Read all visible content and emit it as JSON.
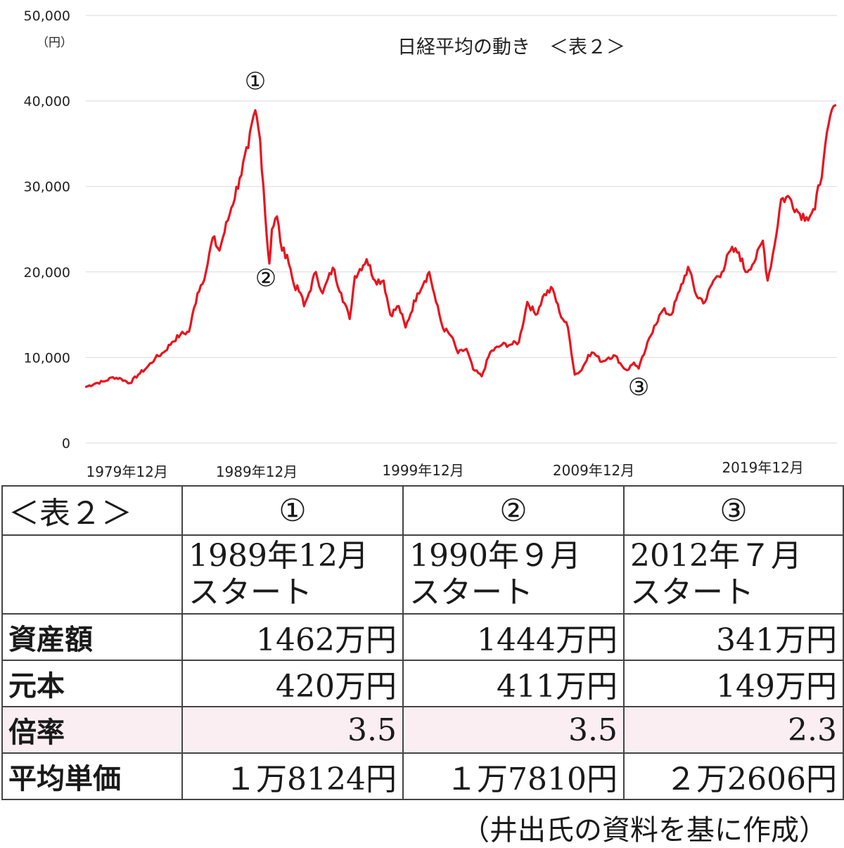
{
  "chart_data": {
    "type": "line",
    "title": "日経平均の動き　＜表２＞",
    "ylabel": "（円）",
    "ylim": [
      0,
      50000
    ],
    "yticks": [
      "0",
      "10,000",
      "20,000",
      "30,000",
      "40,000",
      "50,000"
    ],
    "yticks_values": [
      0,
      10000,
      20000,
      30000,
      40000,
      50000
    ],
    "xlim": [
      1979.9,
      2024.3
    ],
    "xticks": [
      {
        "label": "1979年12月",
        "x": 1979.92
      },
      {
        "label": "1989年12月",
        "x": 1989.92
      },
      {
        "label": "1999年12月",
        "x": 1999.92
      },
      {
        "label": "2009年12月",
        "x": 2009.92
      },
      {
        "label": "2019年12月",
        "x": 2019.92
      }
    ],
    "grid": true,
    "color": "#e8141e",
    "markers": [
      {
        "label": "①",
        "x": 1989.92,
        "y": 38915
      },
      {
        "label": "②",
        "x": 1990.75,
        "y": 20984
      },
      {
        "label": "③",
        "x": 2012.58,
        "y": 8700
      }
    ],
    "series": [
      {
        "x": [
          1979.92,
          1980.5,
          1981.0,
          1981.5,
          1982.0,
          1982.5,
          1983.0,
          1983.5,
          1984.0,
          1984.5,
          1985.0,
          1985.5,
          1986.0,
          1986.5,
          1987.0,
          1987.4,
          1987.8,
          1988.0,
          1988.5,
          1989.0,
          1989.5,
          1989.92,
          1990.2,
          1990.4,
          1990.6,
          1990.75,
          1990.9,
          1991.2,
          1991.5,
          1991.8,
          1992.2,
          1992.6,
          1992.8,
          1993.0,
          1993.5,
          1993.9,
          1994.5,
          1995.0,
          1995.5,
          1995.8,
          1996.5,
          1997.0,
          1997.5,
          1997.9,
          1998.4,
          1998.8,
          1999.5,
          1999.92,
          2000.2,
          2000.6,
          2001.0,
          2001.5,
          2001.9,
          2002.4,
          2002.8,
          2003.3,
          2003.8,
          2004.5,
          2005.0,
          2005.5,
          2006.0,
          2006.5,
          2007.0,
          2007.5,
          2007.9,
          2008.4,
          2008.8,
          2009.2,
          2009.6,
          2009.92,
          2010.4,
          2010.8,
          2011.2,
          2011.6,
          2011.9,
          2012.3,
          2012.58,
          2013.0,
          2013.5,
          2014.0,
          2014.5,
          2015.0,
          2015.5,
          2016.0,
          2016.5,
          2017.0,
          2017.5,
          2018.0,
          2018.5,
          2018.9,
          2019.5,
          2019.92,
          2020.2,
          2020.6,
          2021.0,
          2021.5,
          2022.0,
          2022.5,
          2023.0,
          2023.5,
          2024.0,
          2024.2
        ],
        "values": [
          6570,
          7000,
          7200,
          7700,
          7500,
          7000,
          8000,
          8800,
          9900,
          10600,
          11800,
          12700,
          13000,
          17500,
          20000,
          24000,
          22500,
          24000,
          27500,
          31000,
          34500,
          38915,
          35500,
          30000,
          24000,
          20984,
          25000,
          26500,
          22500,
          22000,
          18500,
          17500,
          16000,
          17000,
          20000,
          17500,
          20500,
          17500,
          14500,
          19500,
          21500,
          19000,
          19000,
          15000,
          16000,
          13500,
          17500,
          18934,
          20000,
          16500,
          13500,
          12500,
          10500,
          11000,
          8600,
          7800,
          10600,
          11500,
          11500,
          11800,
          16500,
          15000,
          17400,
          18000,
          15300,
          13500,
          8000,
          8500,
          10300,
          10546,
          9500,
          10000,
          10200,
          9000,
          8500,
          9400,
          8700,
          11000,
          13700,
          15500,
          15000,
          17800,
          20600,
          17200,
          16500,
          19000,
          20000,
          22500,
          22300,
          20000,
          21500,
          23656,
          19000,
          23000,
          28500,
          28700,
          27000,
          26400,
          27300,
          33000,
          39000,
          39500
        ]
      }
    ]
  },
  "table": {
    "corner": "＜表２＞",
    "markers": [
      "①",
      "②",
      "③"
    ],
    "starts": [
      [
        "1989年12月",
        "スタート"
      ],
      [
        "1990年９月",
        "スタート"
      ],
      [
        "2012年７月",
        "スタート"
      ]
    ],
    "rows": [
      {
        "label": "資産額",
        "values": [
          "1462万円",
          "1444万円",
          "341万円"
        ]
      },
      {
        "label": "元本",
        "values": [
          "420万円",
          "411万円",
          "149万円"
        ]
      },
      {
        "label": "倍率",
        "values": [
          "3.5",
          "3.5",
          "2.3"
        ]
      },
      {
        "label": "平均単価",
        "values": [
          "１万8124円",
          "１万7810円",
          "２万2606円"
        ]
      }
    ],
    "source_note": "（井出氏の資料を基に作成）"
  }
}
